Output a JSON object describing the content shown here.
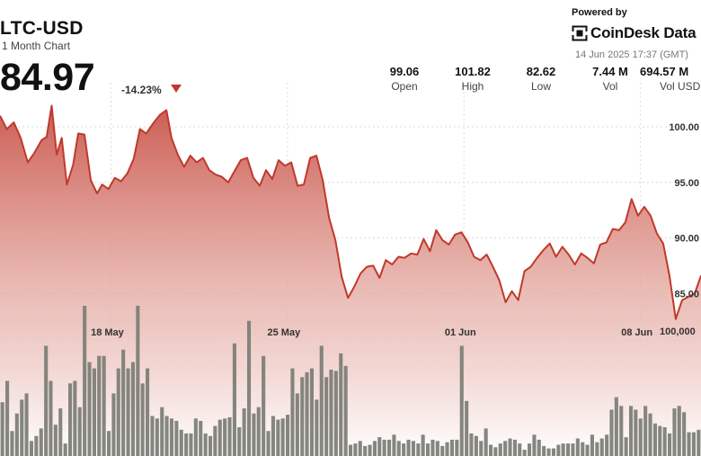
{
  "header": {
    "ticker": "LTC-USD",
    "subtitle": "1 Month Chart",
    "price": "84.97",
    "change": "-14.23%"
  },
  "stats": [
    {
      "value": "99.06",
      "label": "Open"
    },
    {
      "value": "101.82",
      "label": "High"
    },
    {
      "value": "82.62",
      "label": "Low"
    },
    {
      "value": "7.44 M",
      "label": "Vol"
    },
    {
      "value": "694.57 M",
      "label": "Vol USD"
    }
  ],
  "branding": {
    "powered_by": "Powered by",
    "brand": "CoinDesk Data",
    "timestamp": "14 Jun 2025 17:37 (GMT)"
  },
  "colors": {
    "line": "#c0392b",
    "area_top": "#cd5c50",
    "volume": "#7d8078",
    "down_arrow": "#c0392b"
  },
  "chart_data": {
    "type": "area",
    "x_ticks": [
      {
        "label": "18 May",
        "x": 4.4
      },
      {
        "label": "25 May",
        "x": 11.4
      },
      {
        "label": "01 Jun",
        "x": 18.4
      },
      {
        "label": "08 Jun",
        "x": 25.4
      }
    ],
    "y_ticks": [
      85,
      90,
      95,
      100
    ],
    "ylim": [
      78.5,
      102.8
    ],
    "xlim": [
      0,
      27.8
    ],
    "volume_tick": "100,000",
    "volume_tick_value": 100000,
    "volume_max": 120000,
    "price": [
      [
        0,
        101.0
      ],
      [
        0.27,
        99.8
      ],
      [
        0.55,
        100.4
      ],
      [
        0.82,
        99.0
      ],
      [
        1.1,
        96.8
      ],
      [
        1.35,
        97.6
      ],
      [
        1.65,
        98.8
      ],
      [
        1.85,
        99.1
      ],
      [
        2.05,
        101.9
      ],
      [
        2.25,
        97.5
      ],
      [
        2.45,
        99.0
      ],
      [
        2.65,
        94.8
      ],
      [
        2.9,
        96.6
      ],
      [
        3.1,
        99.4
      ],
      [
        3.35,
        99.3
      ],
      [
        3.6,
        95.2
      ],
      [
        3.85,
        94.0
      ],
      [
        4.05,
        94.8
      ],
      [
        4.3,
        94.4
      ],
      [
        4.55,
        95.4
      ],
      [
        4.8,
        95.1
      ],
      [
        5.05,
        95.8
      ],
      [
        5.3,
        97.1
      ],
      [
        5.55,
        99.8
      ],
      [
        5.8,
        99.4
      ],
      [
        6.1,
        100.4
      ],
      [
        6.35,
        101.1
      ],
      [
        6.6,
        101.5
      ],
      [
        6.8,
        99.0
      ],
      [
        7.05,
        97.5
      ],
      [
        7.3,
        96.4
      ],
      [
        7.55,
        97.4
      ],
      [
        7.8,
        96.8
      ],
      [
        8.05,
        97.2
      ],
      [
        8.3,
        96.1
      ],
      [
        8.55,
        95.7
      ],
      [
        8.8,
        95.5
      ],
      [
        9.05,
        95.0
      ],
      [
        9.3,
        96.0
      ],
      [
        9.55,
        97.0
      ],
      [
        9.8,
        97.2
      ],
      [
        10.05,
        95.4
      ],
      [
        10.3,
        94.7
      ],
      [
        10.55,
        96.1
      ],
      [
        10.8,
        95.3
      ],
      [
        11.05,
        97.0
      ],
      [
        11.3,
        96.5
      ],
      [
        11.55,
        96.8
      ],
      [
        11.8,
        94.7
      ],
      [
        12.05,
        94.8
      ],
      [
        12.3,
        97.2
      ],
      [
        12.55,
        97.4
      ],
      [
        12.8,
        95.2
      ],
      [
        13.05,
        91.8
      ],
      [
        13.3,
        89.8
      ],
      [
        13.55,
        86.5
      ],
      [
        13.8,
        84.6
      ],
      [
        14.05,
        85.6
      ],
      [
        14.3,
        86.8
      ],
      [
        14.55,
        87.4
      ],
      [
        14.8,
        87.5
      ],
      [
        15.05,
        86.4
      ],
      [
        15.3,
        88.0
      ],
      [
        15.55,
        87.6
      ],
      [
        15.8,
        88.3
      ],
      [
        16.05,
        88.2
      ],
      [
        16.3,
        88.6
      ],
      [
        16.55,
        88.5
      ],
      [
        16.8,
        89.9
      ],
      [
        17.05,
        88.8
      ],
      [
        17.3,
        90.7
      ],
      [
        17.55,
        89.8
      ],
      [
        17.8,
        89.4
      ],
      [
        18.05,
        90.3
      ],
      [
        18.3,
        90.5
      ],
      [
        18.55,
        89.6
      ],
      [
        18.8,
        88.3
      ],
      [
        19.05,
        88.0
      ],
      [
        19.3,
        88.5
      ],
      [
        19.55,
        87.4
      ],
      [
        19.8,
        86.2
      ],
      [
        20.05,
        84.2
      ],
      [
        20.3,
        85.2
      ],
      [
        20.55,
        84.4
      ],
      [
        20.8,
        87.0
      ],
      [
        21.05,
        87.4
      ],
      [
        21.3,
        88.2
      ],
      [
        21.55,
        88.9
      ],
      [
        21.8,
        89.5
      ],
      [
        22.05,
        88.3
      ],
      [
        22.3,
        89.2
      ],
      [
        22.55,
        88.5
      ],
      [
        22.8,
        87.6
      ],
      [
        23.05,
        88.6
      ],
      [
        23.3,
        88.2
      ],
      [
        23.55,
        87.7
      ],
      [
        23.8,
        89.4
      ],
      [
        24.05,
        89.6
      ],
      [
        24.3,
        90.8
      ],
      [
        24.55,
        90.7
      ],
      [
        24.8,
        91.4
      ],
      [
        25.05,
        93.5
      ],
      [
        25.3,
        92.0
      ],
      [
        25.55,
        92.8
      ],
      [
        25.8,
        92.0
      ],
      [
        26.05,
        90.4
      ],
      [
        26.3,
        89.5
      ],
      [
        26.55,
        86.6
      ],
      [
        26.8,
        82.7
      ],
      [
        27.05,
        84.4
      ],
      [
        27.3,
        84.7
      ],
      [
        27.55,
        85.0
      ],
      [
        27.8,
        86.6
      ]
    ],
    "volume": [
      43000,
      60000,
      20000,
      34000,
      45000,
      50000,
      12000,
      16000,
      22000,
      88000,
      60000,
      25000,
      38000,
      10000,
      58000,
      60000,
      39000,
      120000,
      75000,
      70000,
      80000,
      80000,
      20000,
      50000,
      70000,
      85000,
      70000,
      75000,
      120000,
      58000,
      70000,
      32000,
      30000,
      39000,
      32000,
      30000,
      28000,
      21000,
      18000,
      18000,
      30000,
      28000,
      18000,
      16000,
      24000,
      29000,
      30000,
      31000,
      90000,
      23000,
      38000,
      108000,
      34000,
      39000,
      80000,
      20000,
      32000,
      29000,
      30000,
      33000,
      70000,
      50000,
      63000,
      67000,
      70000,
      45000,
      88000,
      63000,
      69000,
      68000,
      82000,
      72000,
      9000,
      10000,
      12000,
      8000,
      9000,
      12000,
      15000,
      13000,
      13000,
      17000,
      12000,
      10000,
      13000,
      12000,
      10000,
      17000,
      10000,
      13000,
      12000,
      8000,
      11000,
      13000,
      13000,
      88000,
      44000,
      18000,
      16000,
      12000,
      22000,
      9000,
      7000,
      10000,
      12000,
      14000,
      13000,
      10000,
      5000,
      10000,
      17000,
      13000,
      8000,
      6000,
      6000,
      9000,
      10000,
      10000,
      10000,
      14000,
      11000,
      9000,
      17000,
      11000,
      14000,
      17000,
      37000,
      47000,
      40000,
      15000,
      40000,
      37000,
      30000,
      40000,
      34000,
      26000,
      24000,
      23000,
      18000,
      38000,
      40000,
      35000,
      19000,
      19000,
      21000
    ]
  }
}
